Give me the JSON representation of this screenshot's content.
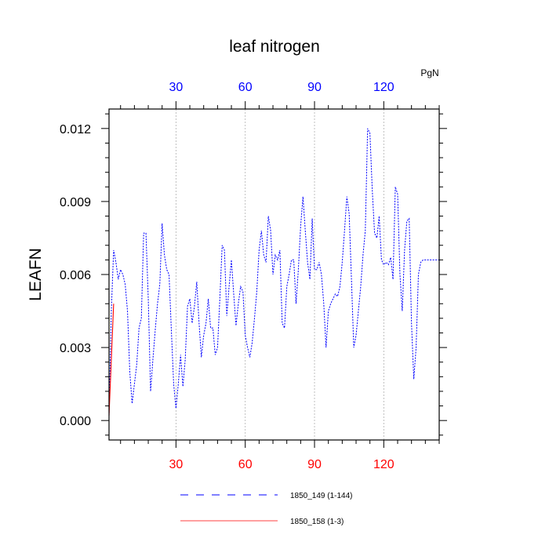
{
  "chart_data": {
    "type": "line",
    "title": "leaf nitrogen",
    "ylabel": "LEAFN",
    "units": "PgN",
    "xlim": [
      1,
      144
    ],
    "ylim": [
      -0.0008,
      0.0128
    ],
    "yticks": [
      0.0,
      0.003,
      0.006,
      0.009,
      0.012
    ],
    "ytick_labels": [
      "0.000",
      "0.003",
      "0.006",
      "0.009",
      "0.012"
    ],
    "xticks": [
      30,
      60,
      90,
      120
    ],
    "xtick_labels": [
      "30",
      "60",
      "90",
      "120"
    ],
    "grid": "vertical dashed at top tick marks",
    "colors": {
      "series1": "#0000ff",
      "series2": "#ff0000",
      "bottom_ticks": "#ff0000",
      "top_ticks": "#0000ff"
    },
    "legend": {
      "placement": "bottom-center"
    },
    "series": [
      {
        "name": "1850_149 (1-144)",
        "style": "dashed",
        "color": "#0000ff",
        "x_start": 1,
        "values": [
          0.0002,
          0.0045,
          0.007,
          0.0065,
          0.0058,
          0.0062,
          0.006,
          0.0056,
          0.0045,
          0.002,
          0.0007,
          0.0015,
          0.0023,
          0.0038,
          0.0042,
          0.0077,
          0.0077,
          0.005,
          0.0012,
          0.0025,
          0.0037,
          0.0048,
          0.0056,
          0.0081,
          0.0068,
          0.0062,
          0.006,
          0.0037,
          0.0015,
          0.0005,
          0.0015,
          0.0027,
          0.0014,
          0.0025,
          0.0047,
          0.005,
          0.004,
          0.0047,
          0.0057,
          0.004,
          0.0026,
          0.0035,
          0.004,
          0.005,
          0.0038,
          0.0038,
          0.0027,
          0.003,
          0.005,
          0.0072,
          0.007,
          0.0043,
          0.0055,
          0.0066,
          0.0052,
          0.0039,
          0.0048,
          0.0055,
          0.0053,
          0.0035,
          0.003,
          0.0026,
          0.0032,
          0.0042,
          0.0053,
          0.007,
          0.0078,
          0.0068,
          0.0065,
          0.0084,
          0.0078,
          0.006,
          0.0068,
          0.0066,
          0.007,
          0.004,
          0.0038,
          0.0055,
          0.006,
          0.0066,
          0.0066,
          0.0048,
          0.0062,
          0.008,
          0.0092,
          0.0078,
          0.0065,
          0.0058,
          0.0083,
          0.0062,
          0.0062,
          0.0065,
          0.006,
          0.0048,
          0.003,
          0.0045,
          0.0048,
          0.005,
          0.0052,
          0.0051,
          0.0055,
          0.0065,
          0.0078,
          0.0092,
          0.0085,
          0.0058,
          0.003,
          0.0035,
          0.0045,
          0.0055,
          0.0068,
          0.0078,
          0.012,
          0.0118,
          0.0095,
          0.0077,
          0.0075,
          0.0084,
          0.0066,
          0.0064,
          0.0065,
          0.0064,
          0.0067,
          0.0058,
          0.0096,
          0.0093,
          0.006,
          0.0045,
          0.007,
          0.0082,
          0.0083,
          0.004,
          0.0017,
          0.003,
          0.006,
          0.0065,
          0.0066,
          0.0066,
          0.0066,
          0.0066,
          0.0066,
          0.0066,
          0.0066,
          0.0066
        ]
      },
      {
        "name": "1850_158 (1-3)",
        "style": "solid",
        "color": "#ff0000",
        "x_start": 1,
        "values": [
          0.0002,
          0.0025,
          0.0048
        ]
      }
    ]
  }
}
